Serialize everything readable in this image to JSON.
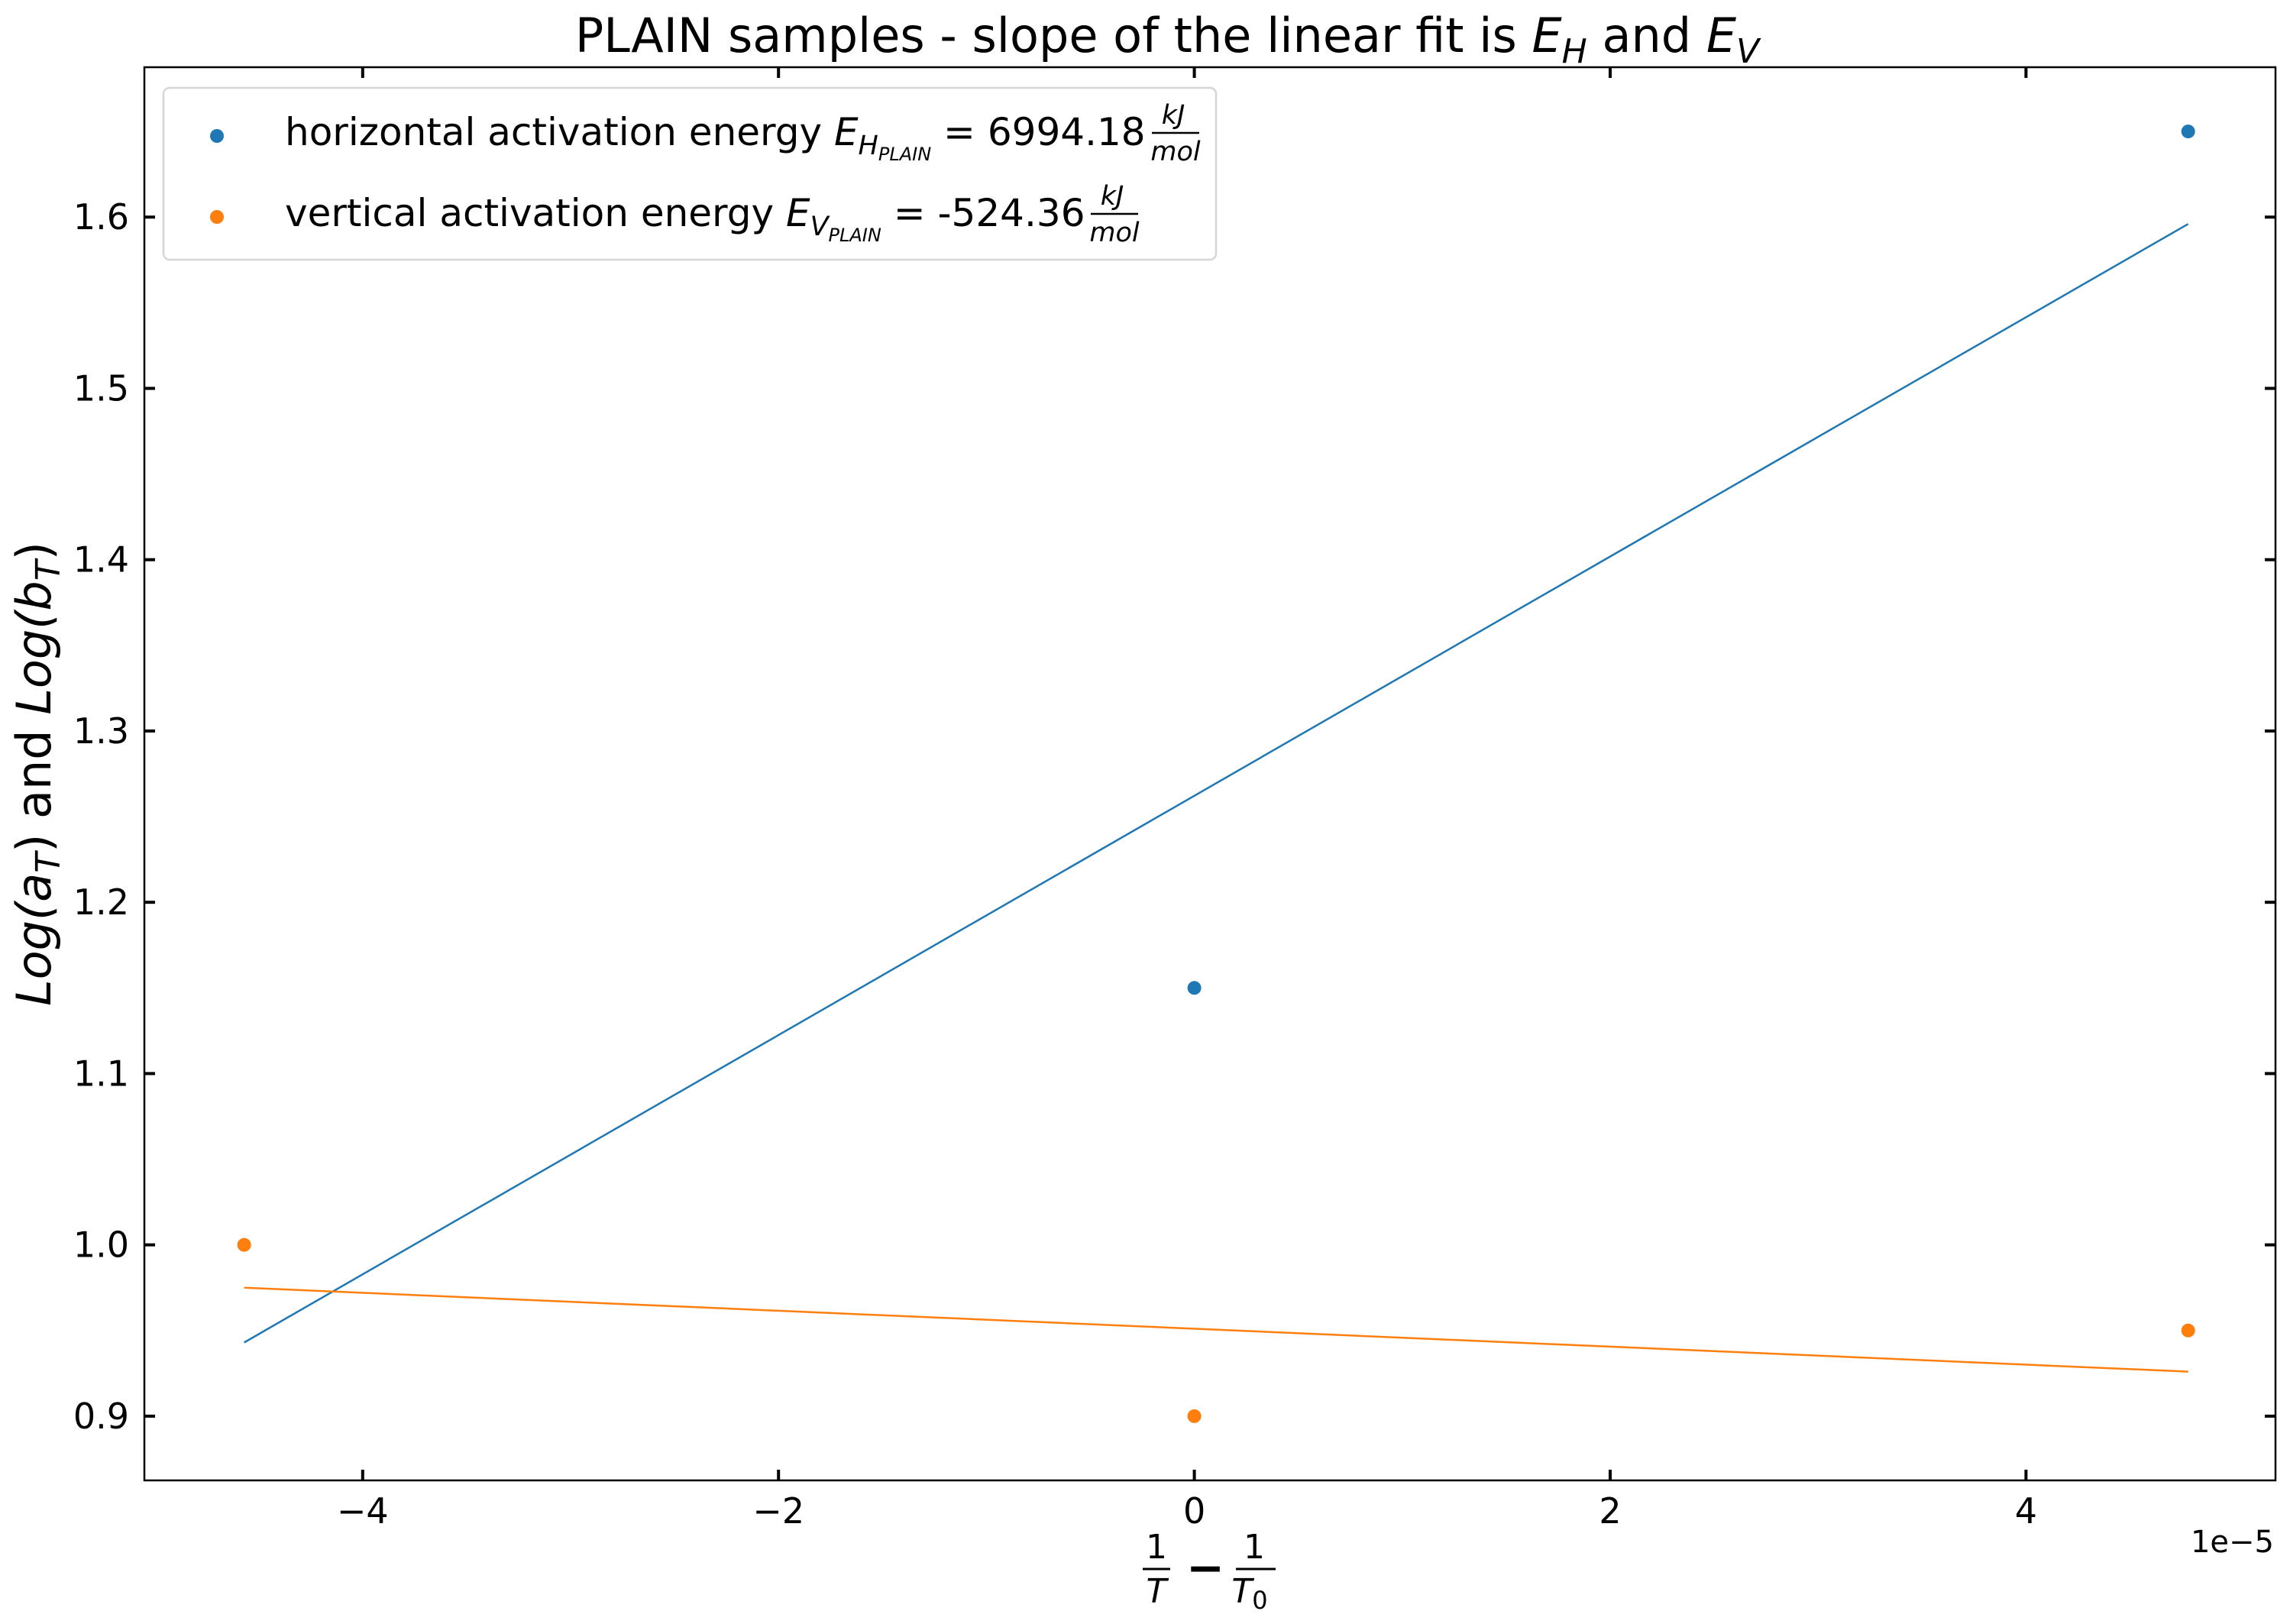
{
  "chart_data": {
    "type": "scatter",
    "title": {
      "prefix": "PLAIN samples - slope of the linear fit is ",
      "e_h": "E",
      "e_h_sub": "H",
      "conj": " and ",
      "e_v": "E",
      "e_v_sub": "V"
    },
    "xlabel": {
      "one_a": "1",
      "t": "T",
      "minus": "−",
      "one_b": "1",
      "t0": "T",
      "t0_sub": "0"
    },
    "ylabel": {
      "log_a": "Log(a",
      "log_a_sub": "T",
      "close_a": ")",
      "and": " and ",
      "log_b": "Log(b",
      "log_b_sub": "T",
      "close_b": ")"
    },
    "x_scale_label": "1e−5",
    "x_scale": 1e-05,
    "xlim": [
      -5.05,
      5.2
    ],
    "ylim": [
      0.8625,
      1.6875
    ],
    "x_ticks": [
      -4,
      -2,
      0,
      2,
      4
    ],
    "x_tick_labels": [
      "−4",
      "−2",
      "0",
      "2",
      "4"
    ],
    "y_ticks": [
      0.9,
      1.0,
      1.1,
      1.2,
      1.3,
      1.4,
      1.5,
      1.6
    ],
    "y_tick_labels": [
      "0.9",
      "1.0",
      "1.1",
      "1.2",
      "1.3",
      "1.4",
      "1.5",
      "1.6"
    ],
    "grid": false,
    "legend_position": "top-left",
    "series": [
      {
        "name": "horizontal activation energy",
        "legend_symbol": "E",
        "legend_sub": "H",
        "legend_subsub": "PLAIN",
        "legend_value": " = 6994.18",
        "unit_num": "kJ",
        "unit_den": "mol",
        "color": "#1f77b4",
        "points": [
          {
            "x": 0.0,
            "y": 1.15
          },
          {
            "x": 4.78,
            "y": 1.65
          }
        ],
        "fit": [
          {
            "x": -4.57,
            "y": 0.943
          },
          {
            "x": 4.78,
            "y": 1.596
          }
        ]
      },
      {
        "name": "vertical activation energy",
        "legend_symbol": "E",
        "legend_sub": "V",
        "legend_subsub": "PLAIN",
        "legend_value": " = -524.36",
        "unit_num": "kJ",
        "unit_den": "mol",
        "color": "#ff7f0e",
        "points": [
          {
            "x": -4.57,
            "y": 1.0
          },
          {
            "x": 0.0,
            "y": 0.9
          },
          {
            "x": 4.78,
            "y": 0.95
          }
        ],
        "fit": [
          {
            "x": -4.57,
            "y": 0.975
          },
          {
            "x": 4.78,
            "y": 0.926
          }
        ]
      }
    ]
  }
}
